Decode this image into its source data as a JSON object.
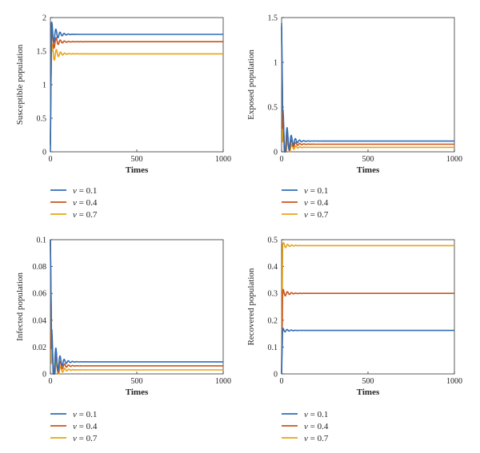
{
  "chart_data": [
    {
      "type": "line",
      "xlabel": "Times",
      "ylabel": "Susceptible population",
      "xlim": [
        0,
        1000
      ],
      "ylim": [
        0,
        2
      ],
      "xticks": [
        "0",
        "500",
        "1000"
      ],
      "yticks": [
        "0",
        "0.5",
        "1",
        "1.5",
        "2"
      ],
      "legend_position": "below",
      "series": [
        {
          "name": "v = 0.1",
          "color": "#2f6db5",
          "steady": 1.75,
          "start": 0.0,
          "peak": 1.93
        },
        {
          "name": "v = 0.4",
          "color": "#c8541c",
          "steady": 1.64,
          "start": 0.1,
          "peak": 1.79
        },
        {
          "name": "v = 0.7",
          "color": "#e8a317",
          "steady": 1.46,
          "start": 0.2,
          "peak": 1.62
        }
      ]
    },
    {
      "type": "line",
      "xlabel": "Times",
      "ylabel": "Exposed population",
      "xlim": [
        0,
        1000
      ],
      "ylim": [
        0,
        1.5
      ],
      "xticks": [
        "0",
        "500",
        "1000"
      ],
      "yticks": [
        "0",
        "0.5",
        "1",
        "1.5"
      ],
      "legend_position": "below",
      "series": [
        {
          "name": "v = 0.1",
          "color": "#2f6db5",
          "steady": 0.12,
          "start": 1.44,
          "peak": 0.47
        },
        {
          "name": "v = 0.4",
          "color": "#c8541c",
          "steady": 0.085,
          "start": 1.4,
          "peak": 0.35
        },
        {
          "name": "v = 0.7",
          "color": "#e8a317",
          "steady": 0.05,
          "start": 1.3,
          "peak": 0.25
        }
      ]
    },
    {
      "type": "line",
      "xlabel": "Times",
      "ylabel": "Infected population",
      "xlim": [
        0,
        1000
      ],
      "ylim": [
        0,
        0.1
      ],
      "xticks": [
        "0",
        "500",
        "1000"
      ],
      "yticks": [
        "0",
        "0.02",
        "0.04",
        "0.06",
        "0.08",
        "0.1"
      ],
      "legend_position": "below",
      "series": [
        {
          "name": "v = 0.1",
          "color": "#2f6db5",
          "steady": 0.009,
          "start": 0.1,
          "peak": 0.033
        },
        {
          "name": "v = 0.4",
          "color": "#c8541c",
          "steady": 0.006,
          "start": 0.1,
          "peak": 0.025
        },
        {
          "name": "v = 0.7",
          "color": "#e8a317",
          "steady": 0.003,
          "start": 0.1,
          "peak": 0.019
        }
      ]
    },
    {
      "type": "line",
      "xlabel": "Times",
      "ylabel": "Recovered population",
      "xlim": [
        0,
        1000
      ],
      "ylim": [
        0,
        0.5
      ],
      "xticks": [
        "0",
        "500",
        "1000"
      ],
      "yticks": [
        "0",
        "0.1",
        "0.2",
        "0.3",
        "0.4",
        "0.5"
      ],
      "legend_position": "below",
      "series": [
        {
          "name": "v = 0.1",
          "color": "#2f6db5",
          "steady": 0.162,
          "start": 0.0,
          "peak": 0.17
        },
        {
          "name": "v = 0.4",
          "color": "#c8541c",
          "steady": 0.3,
          "start": 0.0,
          "peak": 0.315
        },
        {
          "name": "v = 0.7",
          "color": "#e8a317",
          "steady": 0.478,
          "start": 0.0,
          "peak": 0.49
        }
      ]
    }
  ]
}
